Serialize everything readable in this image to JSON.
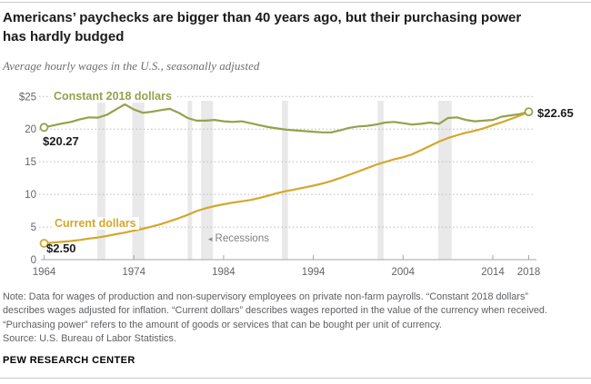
{
  "page": {
    "title_lines": [
      "Americans’ paychecks are bigger than 40 years ago, but their purchasing power",
      "has hardly budged"
    ],
    "subtitle": "Average hourly wages in the U.S., seasonally adjusted",
    "notes": [
      "Note: Data for wages of production and non-supervisory employees on private non-farm payrolls. “Constant 2018 dollars”",
      "describes wages adjusted for inflation. “Current dollars” describes wages reported in the value of the currency when received.",
      "“Purchasing power” refers to the amount of goods or services that can be bought per unit of currency.",
      "Source: U.S. Bureau of Labor Statistics."
    ],
    "brand": "PEW RESEARCH CENTER"
  },
  "colors": {
    "constant_series": "#96a14b",
    "current_series": "#d4a72c",
    "gridline": "#b9b9b9",
    "axis": "#a6a6a6",
    "axis_text": "#63666a",
    "recession_band": "#e9e9e9",
    "marker_fill": "#ffffff"
  },
  "chart_data": {
    "type": "line",
    "title": "Americans’ paychecks are bigger than 40 years ago, but their purchasing power has hardly budged",
    "subtitle": "Average hourly wages in the U.S., seasonally adjusted",
    "x_start": 1964,
    "x_end": 2018,
    "x_step": 1,
    "ylim": [
      0,
      25
    ],
    "grid": "dotted horizontal",
    "x_axis": {
      "ticks": [
        1964,
        1974,
        1984,
        1994,
        2004,
        2014,
        2018
      ],
      "labels": [
        "1964",
        "1974",
        "1984",
        "1994",
        "2004",
        "2014",
        "2018"
      ]
    },
    "y_axis": {
      "values": [
        25,
        20,
        15,
        10,
        5,
        0
      ],
      "labels": [
        "$25",
        "20",
        "15",
        "10",
        "5",
        "0"
      ]
    },
    "series": [
      {
        "name": "Constant 2018 dollars",
        "color": "#96a14b",
        "values": [
          20.27,
          20.55,
          20.85,
          21.1,
          21.5,
          21.8,
          21.75,
          22.2,
          23.0,
          23.8,
          23.0,
          22.5,
          22.65,
          22.9,
          23.1,
          22.5,
          21.7,
          21.3,
          21.3,
          21.4,
          21.2,
          21.1,
          21.2,
          20.9,
          20.6,
          20.3,
          20.1,
          19.9,
          19.8,
          19.7,
          19.6,
          19.5,
          19.5,
          19.8,
          20.2,
          20.4,
          20.5,
          20.7,
          21.0,
          21.1,
          20.9,
          20.7,
          20.8,
          21.0,
          20.8,
          21.7,
          21.8,
          21.4,
          21.2,
          21.3,
          21.4,
          21.9,
          22.1,
          22.3,
          22.65
        ]
      },
      {
        "name": "Current dollars",
        "color": "#d4a72c",
        "values": [
          2.5,
          2.61,
          2.72,
          2.85,
          3.02,
          3.22,
          3.4,
          3.63,
          3.9,
          4.14,
          4.43,
          4.73,
          5.06,
          5.44,
          5.88,
          6.34,
          6.85,
          7.44,
          7.87,
          8.2,
          8.49,
          8.74,
          8.93,
          9.14,
          9.44,
          9.8,
          10.2,
          10.52,
          10.77,
          11.05,
          11.34,
          11.65,
          12.04,
          12.51,
          13.01,
          13.49,
          14.02,
          14.54,
          14.97,
          15.37,
          15.69,
          16.13,
          16.76,
          17.43,
          18.08,
          18.62,
          19.05,
          19.44,
          19.74,
          20.13,
          20.61,
          21.04,
          21.54,
          22.05,
          22.65
        ]
      }
    ],
    "markers": [
      {
        "year": 1964,
        "value": 20.27,
        "series": 0
      },
      {
        "year": 1964,
        "value": 2.5,
        "series": 1
      },
      {
        "year": 2018,
        "value": 22.65,
        "series": 0
      }
    ],
    "annotations": {
      "start_constant": "$20.27",
      "start_current": "$2.50",
      "end": "$22.65",
      "recessions_label": "Recessions"
    },
    "recessions": [
      [
        1969.92,
        1970.83
      ],
      [
        1973.83,
        1975.17
      ],
      [
        1980.0,
        1980.5
      ],
      [
        1981.5,
        1982.83
      ],
      [
        1990.5,
        1991.17
      ],
      [
        2001.17,
        2001.83
      ],
      [
        2007.92,
        2009.42
      ]
    ],
    "legend_position": "labels on lines"
  }
}
